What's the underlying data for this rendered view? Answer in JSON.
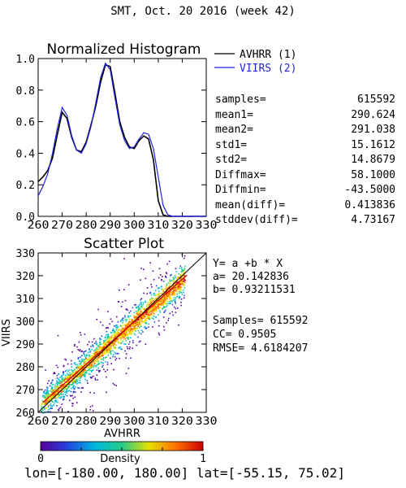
{
  "page_title": "SMT,  Oct. 20 2016 (week 42)",
  "colors": {
    "avhrr": "#000000",
    "viirs": "#2222dd",
    "fit_line": "#cc0000",
    "density_scale": [
      "#5a009a",
      "#2244dd",
      "#00b8e0",
      "#22cc88",
      "#e6e000",
      "#ff7000",
      "#cc0000"
    ]
  },
  "footer": "lon=[-180.00, 180.00] lat=[-55.15, 75.02]",
  "stats": [
    {
      "label": "samples=",
      "value": "615592"
    },
    {
      "label": "mean1=",
      "value": "290.624"
    },
    {
      "label": "mean2=",
      "value": "291.038"
    },
    {
      "label": "std1=",
      "value": "15.1612"
    },
    {
      "label": "std2=",
      "value": "14.8679"
    },
    {
      "label": "Diffmax=",
      "value": "58.1000"
    },
    {
      "label": "Diffmin=",
      "value": "-43.5000"
    },
    {
      "label": "mean(diff)=",
      "value": "0.413836"
    },
    {
      "label": "stddev(diff)=",
      "value": "4.73167"
    }
  ],
  "regression": {
    "equation": "Y= a +b * X",
    "a": "a= 20.142836",
    "b": "b= 0.93211531",
    "samples": "Samples= 615592",
    "cc": "CC=  0.9505",
    "rmse": "RMSE= 4.6184207"
  },
  "chart_data": [
    {
      "type": "line",
      "title": "Normalized Histogram",
      "xlim": [
        260,
        330
      ],
      "ylim": [
        0.0,
        1.0
      ],
      "xticks": [
        "260",
        "270",
        "280",
        "290",
        "300",
        "310",
        "320",
        "330"
      ],
      "yticks": [
        "0.0",
        "0.2",
        "0.4",
        "0.6",
        "0.8",
        "1.0"
      ],
      "x": [
        260,
        262,
        264,
        266,
        268,
        270,
        272,
        274,
        276,
        278,
        280,
        282,
        284,
        286,
        288,
        290,
        292,
        294,
        296,
        298,
        300,
        302,
        304,
        306,
        308,
        310,
        312,
        314,
        316,
        318,
        320,
        322,
        324,
        326,
        328,
        330
      ],
      "series": [
        {
          "name": "AVHRR (1)",
          "color": "#000000",
          "values": [
            0.22,
            0.25,
            0.29,
            0.37,
            0.52,
            0.66,
            0.62,
            0.5,
            0.42,
            0.41,
            0.47,
            0.58,
            0.7,
            0.85,
            0.96,
            0.95,
            0.78,
            0.6,
            0.5,
            0.44,
            0.43,
            0.48,
            0.51,
            0.49,
            0.36,
            0.1,
            0.01,
            0.0,
            0.0,
            0.0,
            0.0,
            0.0,
            0.0,
            0.0,
            0.0,
            0.0
          ]
        },
        {
          "name": "VIIRS (2)",
          "color": "#2222dd",
          "values": [
            0.13,
            0.19,
            0.27,
            0.4,
            0.56,
            0.69,
            0.64,
            0.51,
            0.42,
            0.4,
            0.46,
            0.57,
            0.72,
            0.88,
            0.97,
            0.93,
            0.75,
            0.58,
            0.48,
            0.43,
            0.44,
            0.49,
            0.53,
            0.52,
            0.43,
            0.25,
            0.07,
            0.01,
            0.0,
            0.0,
            0.0,
            0.0,
            0.0,
            0.0,
            0.0,
            0.0
          ]
        }
      ]
    },
    {
      "type": "heatmap",
      "title": "Scatter Plot",
      "xlabel": "AVHRR",
      "ylabel": "VIIRS",
      "xlim": [
        260,
        330
      ],
      "ylim": [
        260,
        330
      ],
      "xticks": [
        "260",
        "270",
        "280",
        "290",
        "300",
        "310",
        "320",
        "330"
      ],
      "yticks": [
        "260",
        "270",
        "280",
        "290",
        "300",
        "310",
        "320",
        "330"
      ],
      "fit": {
        "a": 20.142836,
        "b": 0.93211531
      },
      "colorbar": {
        "label": "Density",
        "min": "0",
        "max": "1"
      }
    }
  ]
}
